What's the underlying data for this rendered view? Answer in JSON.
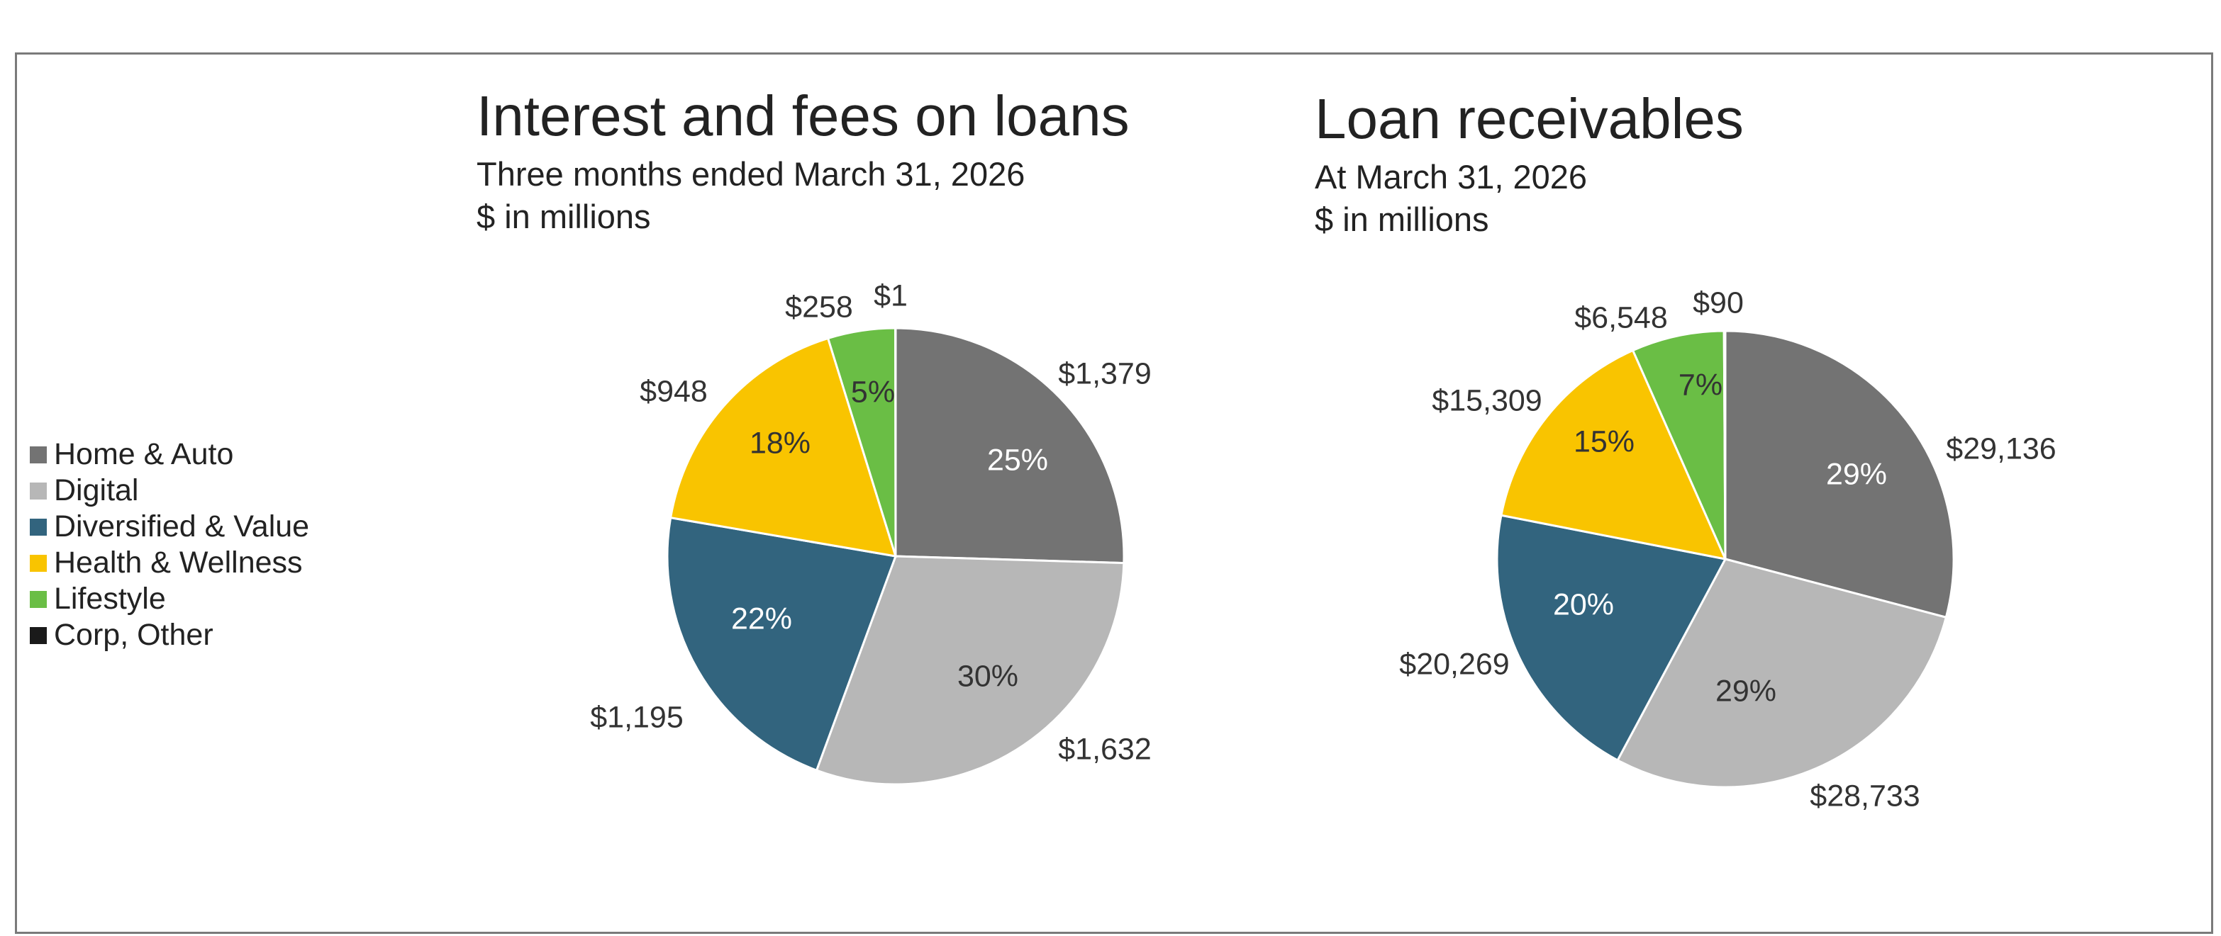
{
  "legend": {
    "items": [
      {
        "label": "Home & Auto",
        "color": "#737373"
      },
      {
        "label": "Digital",
        "color": "#b7b7b7"
      },
      {
        "label": "Diversified & Value",
        "color": "#32647e"
      },
      {
        "label": "Health & Wellness",
        "color": "#f9c400"
      },
      {
        "label": "Lifestyle",
        "color": "#6abe45"
      },
      {
        "label": "Corp, Other",
        "color": "#1a1a1a"
      }
    ]
  },
  "chart_data": [
    {
      "type": "pie",
      "title": "Interest and fees on loans",
      "subtitle": [
        "Three months ended March 31, 2026",
        "$ in millions"
      ],
      "categories": [
        "Home & Auto",
        "Digital",
        "Diversified & Value",
        "Health & Wellness",
        "Lifestyle",
        "Corp, Other"
      ],
      "values": [
        1379,
        1632,
        1195,
        948,
        258,
        1
      ],
      "value_labels": [
        "$1,379",
        "$1,632",
        "$1,195",
        "$948",
        "$258",
        "$1"
      ],
      "percent_labels": [
        "25%",
        "30%",
        "22%",
        "18%",
        "5%",
        ""
      ],
      "colors": [
        "#737373",
        "#b7b7b7",
        "#32647e",
        "#f9c400",
        "#6abe45",
        "#1a1a1a"
      ],
      "legend": "left"
    },
    {
      "type": "pie",
      "title": "Loan receivables",
      "subtitle": [
        "At March 31, 2026",
        "$ in millions"
      ],
      "categories": [
        "Home & Auto",
        "Digital",
        "Diversified & Value",
        "Health & Wellness",
        "Lifestyle",
        "Corp, Other"
      ],
      "values": [
        29136,
        28733,
        20269,
        15309,
        6548,
        90
      ],
      "value_labels": [
        "$29,136",
        "$28,733",
        "$20,269",
        "$15,309",
        "$6,548",
        "$90"
      ],
      "percent_labels": [
        "29%",
        "29%",
        "20%",
        "15%",
        "7%",
        ""
      ],
      "colors": [
        "#737373",
        "#b7b7b7",
        "#32647e",
        "#f9c400",
        "#6abe45",
        "#1a1a1a"
      ],
      "legend": "left"
    }
  ]
}
